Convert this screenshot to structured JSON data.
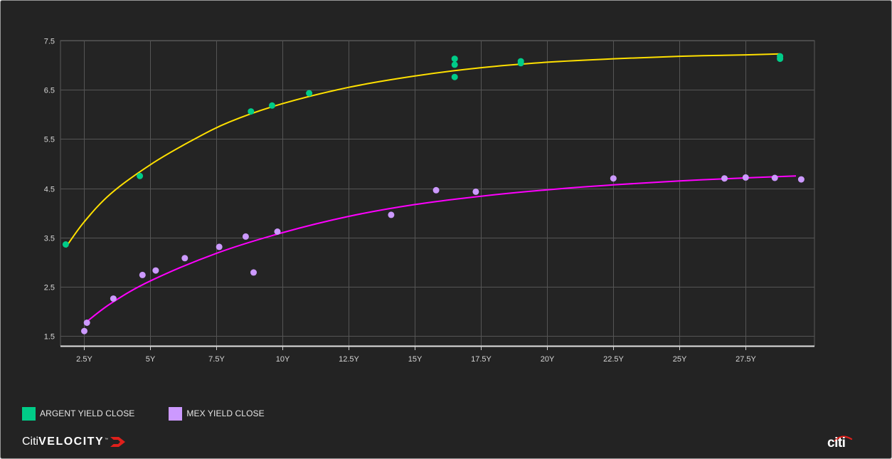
{
  "chart_data": {
    "type": "scatter",
    "title": "",
    "xlabel": "",
    "ylabel": "",
    "x_ticks": [
      2.5,
      5,
      7.5,
      10,
      12.5,
      15,
      17.5,
      20,
      22.5,
      25,
      27.5
    ],
    "x_tick_labels": [
      "2.5Y",
      "5Y",
      "7.5Y",
      "10Y",
      "12.5Y",
      "15Y",
      "17.5Y",
      "20Y",
      "22.5Y",
      "25Y",
      "27.5Y"
    ],
    "y_ticks": [
      1.5,
      2.5,
      3.5,
      4.5,
      5.5,
      6.5,
      7.5
    ],
    "y_tick_labels": [
      "1.5",
      "2.5",
      "3.5",
      "4.5",
      "5.5",
      "6.5",
      "7.5"
    ],
    "xlim": [
      1.6,
      30.1
    ],
    "ylim": [
      1.3,
      7.5
    ],
    "grid": true,
    "legend_position": "bottom-left",
    "series": [
      {
        "name": "ARGENT YIELD CLOSE",
        "color": "#00cc88",
        "points": [
          {
            "x": 1.8,
            "y": 3.36
          },
          {
            "x": 4.6,
            "y": 4.75
          },
          {
            "x": 8.8,
            "y": 6.06
          },
          {
            "x": 9.6,
            "y": 6.18
          },
          {
            "x": 11.0,
            "y": 6.43
          },
          {
            "x": 16.5,
            "y": 7.13
          },
          {
            "x": 16.5,
            "y": 7.01
          },
          {
            "x": 16.5,
            "y": 6.76
          },
          {
            "x": 19.0,
            "y": 7.08
          },
          {
            "x": 19.0,
            "y": 7.04
          },
          {
            "x": 28.8,
            "y": 7.18
          },
          {
            "x": 28.8,
            "y": 7.13
          }
        ],
        "fit_color": "#ffe000",
        "fit": [
          {
            "x": 1.8,
            "y": 3.3
          },
          {
            "x": 2.5,
            "y": 3.82
          },
          {
            "x": 3.5,
            "y": 4.39
          },
          {
            "x": 5.0,
            "y": 4.98
          },
          {
            "x": 6.5,
            "y": 5.45
          },
          {
            "x": 8.0,
            "y": 5.85
          },
          {
            "x": 10.0,
            "y": 6.22
          },
          {
            "x": 12.5,
            "y": 6.55
          },
          {
            "x": 15.0,
            "y": 6.78
          },
          {
            "x": 17.5,
            "y": 6.95
          },
          {
            "x": 20.0,
            "y": 7.06
          },
          {
            "x": 22.5,
            "y": 7.13
          },
          {
            "x": 25.0,
            "y": 7.18
          },
          {
            "x": 27.5,
            "y": 7.21
          },
          {
            "x": 28.8,
            "y": 7.23
          }
        ]
      },
      {
        "name": "MEX YIELD CLOSE",
        "color": "#cc99ff",
        "points": [
          {
            "x": 2.5,
            "y": 1.6
          },
          {
            "x": 2.6,
            "y": 1.77
          },
          {
            "x": 3.6,
            "y": 2.26
          },
          {
            "x": 4.7,
            "y": 2.74
          },
          {
            "x": 5.2,
            "y": 2.83
          },
          {
            "x": 6.3,
            "y": 3.08
          },
          {
            "x": 7.6,
            "y": 3.31
          },
          {
            "x": 8.6,
            "y": 3.52
          },
          {
            "x": 8.9,
            "y": 2.79
          },
          {
            "x": 9.8,
            "y": 3.62
          },
          {
            "x": 14.1,
            "y": 3.96
          },
          {
            "x": 15.8,
            "y": 4.46
          },
          {
            "x": 17.3,
            "y": 4.43
          },
          {
            "x": 22.5,
            "y": 4.7
          },
          {
            "x": 26.7,
            "y": 4.7
          },
          {
            "x": 27.5,
            "y": 4.72
          },
          {
            "x": 28.6,
            "y": 4.71
          },
          {
            "x": 29.6,
            "y": 4.68
          }
        ],
        "fit_color": "#ff00ff",
        "fit": [
          {
            "x": 2.5,
            "y": 1.75
          },
          {
            "x": 3.5,
            "y": 2.16
          },
          {
            "x": 5.0,
            "y": 2.62
          },
          {
            "x": 7.5,
            "y": 3.18
          },
          {
            "x": 10.0,
            "y": 3.6
          },
          {
            "x": 12.5,
            "y": 3.93
          },
          {
            "x": 15.0,
            "y": 4.17
          },
          {
            "x": 17.5,
            "y": 4.34
          },
          {
            "x": 20.0,
            "y": 4.47
          },
          {
            "x": 22.5,
            "y": 4.57
          },
          {
            "x": 25.0,
            "y": 4.65
          },
          {
            "x": 27.5,
            "y": 4.71
          },
          {
            "x": 29.4,
            "y": 4.75
          }
        ]
      }
    ]
  },
  "legend": [
    {
      "label": "ARGENT YIELD CLOSE",
      "color": "#00cc88"
    },
    {
      "label": "MEX YIELD CLOSE",
      "color": "#cc99ff"
    }
  ],
  "branding": {
    "left_prefix": "Citi",
    "left_bold": "VELOCITY",
    "left_tm": "™",
    "right": "citi"
  }
}
